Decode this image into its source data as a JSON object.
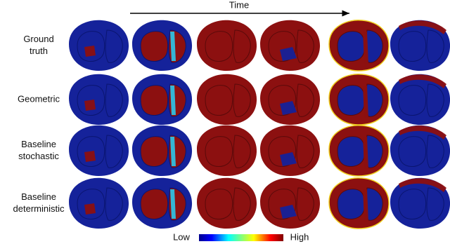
{
  "time_label": "Time",
  "rows": [
    {
      "label_lines": [
        "Ground",
        "truth"
      ]
    },
    {
      "label_lines": [
        "Geometric"
      ]
    },
    {
      "label_lines": [
        "Baseline",
        "stochastic"
      ]
    },
    {
      "label_lines": [
        "Baseline",
        "deterministic"
      ]
    }
  ],
  "colorbar": {
    "low_label": "Low",
    "high_label": "High"
  }
}
